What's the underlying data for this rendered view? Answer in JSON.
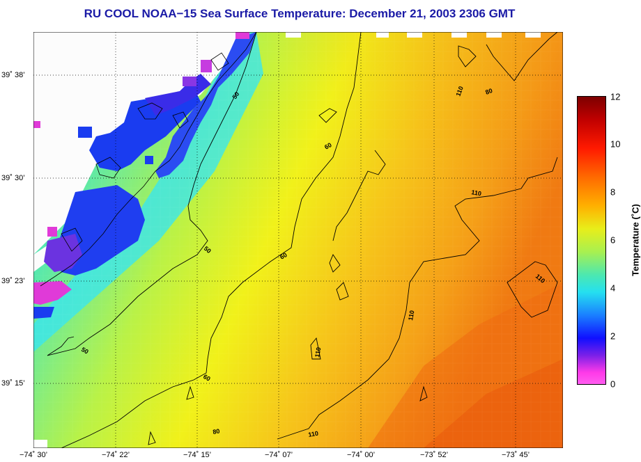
{
  "title": "RU COOL  NOAA−15  Sea Surface Temperature:  December 21, 2003 2306 GMT",
  "colors": {
    "title": "#1a1aa6",
    "land": "#fcfcfc",
    "contour": "#000000",
    "grid": "#000000"
  },
  "longitude_labels": [
    "−74˚ 30’",
    "−74˚ 22’",
    "−74˚ 15’",
    "−74˚ 07’",
    "−74˚ 00’",
    "−73˚ 52’",
    "−73˚ 45’"
  ],
  "latitude_labels": [
    "39˚ 38’",
    "39˚ 30’",
    "39˚ 23’",
    "39˚ 15’"
  ],
  "colorbar": {
    "title": "Temperature (˚C)",
    "ticks": [
      "12",
      "10",
      "8",
      "6",
      "4",
      "2",
      "0"
    ],
    "min": 0,
    "max": 12
  },
  "contour_labels": [
    "50",
    "60",
    "80",
    "110"
  ],
  "map_icons": {
    "grid": "dotted-graticule-icon",
    "coastline": "coastline-icon"
  }
}
